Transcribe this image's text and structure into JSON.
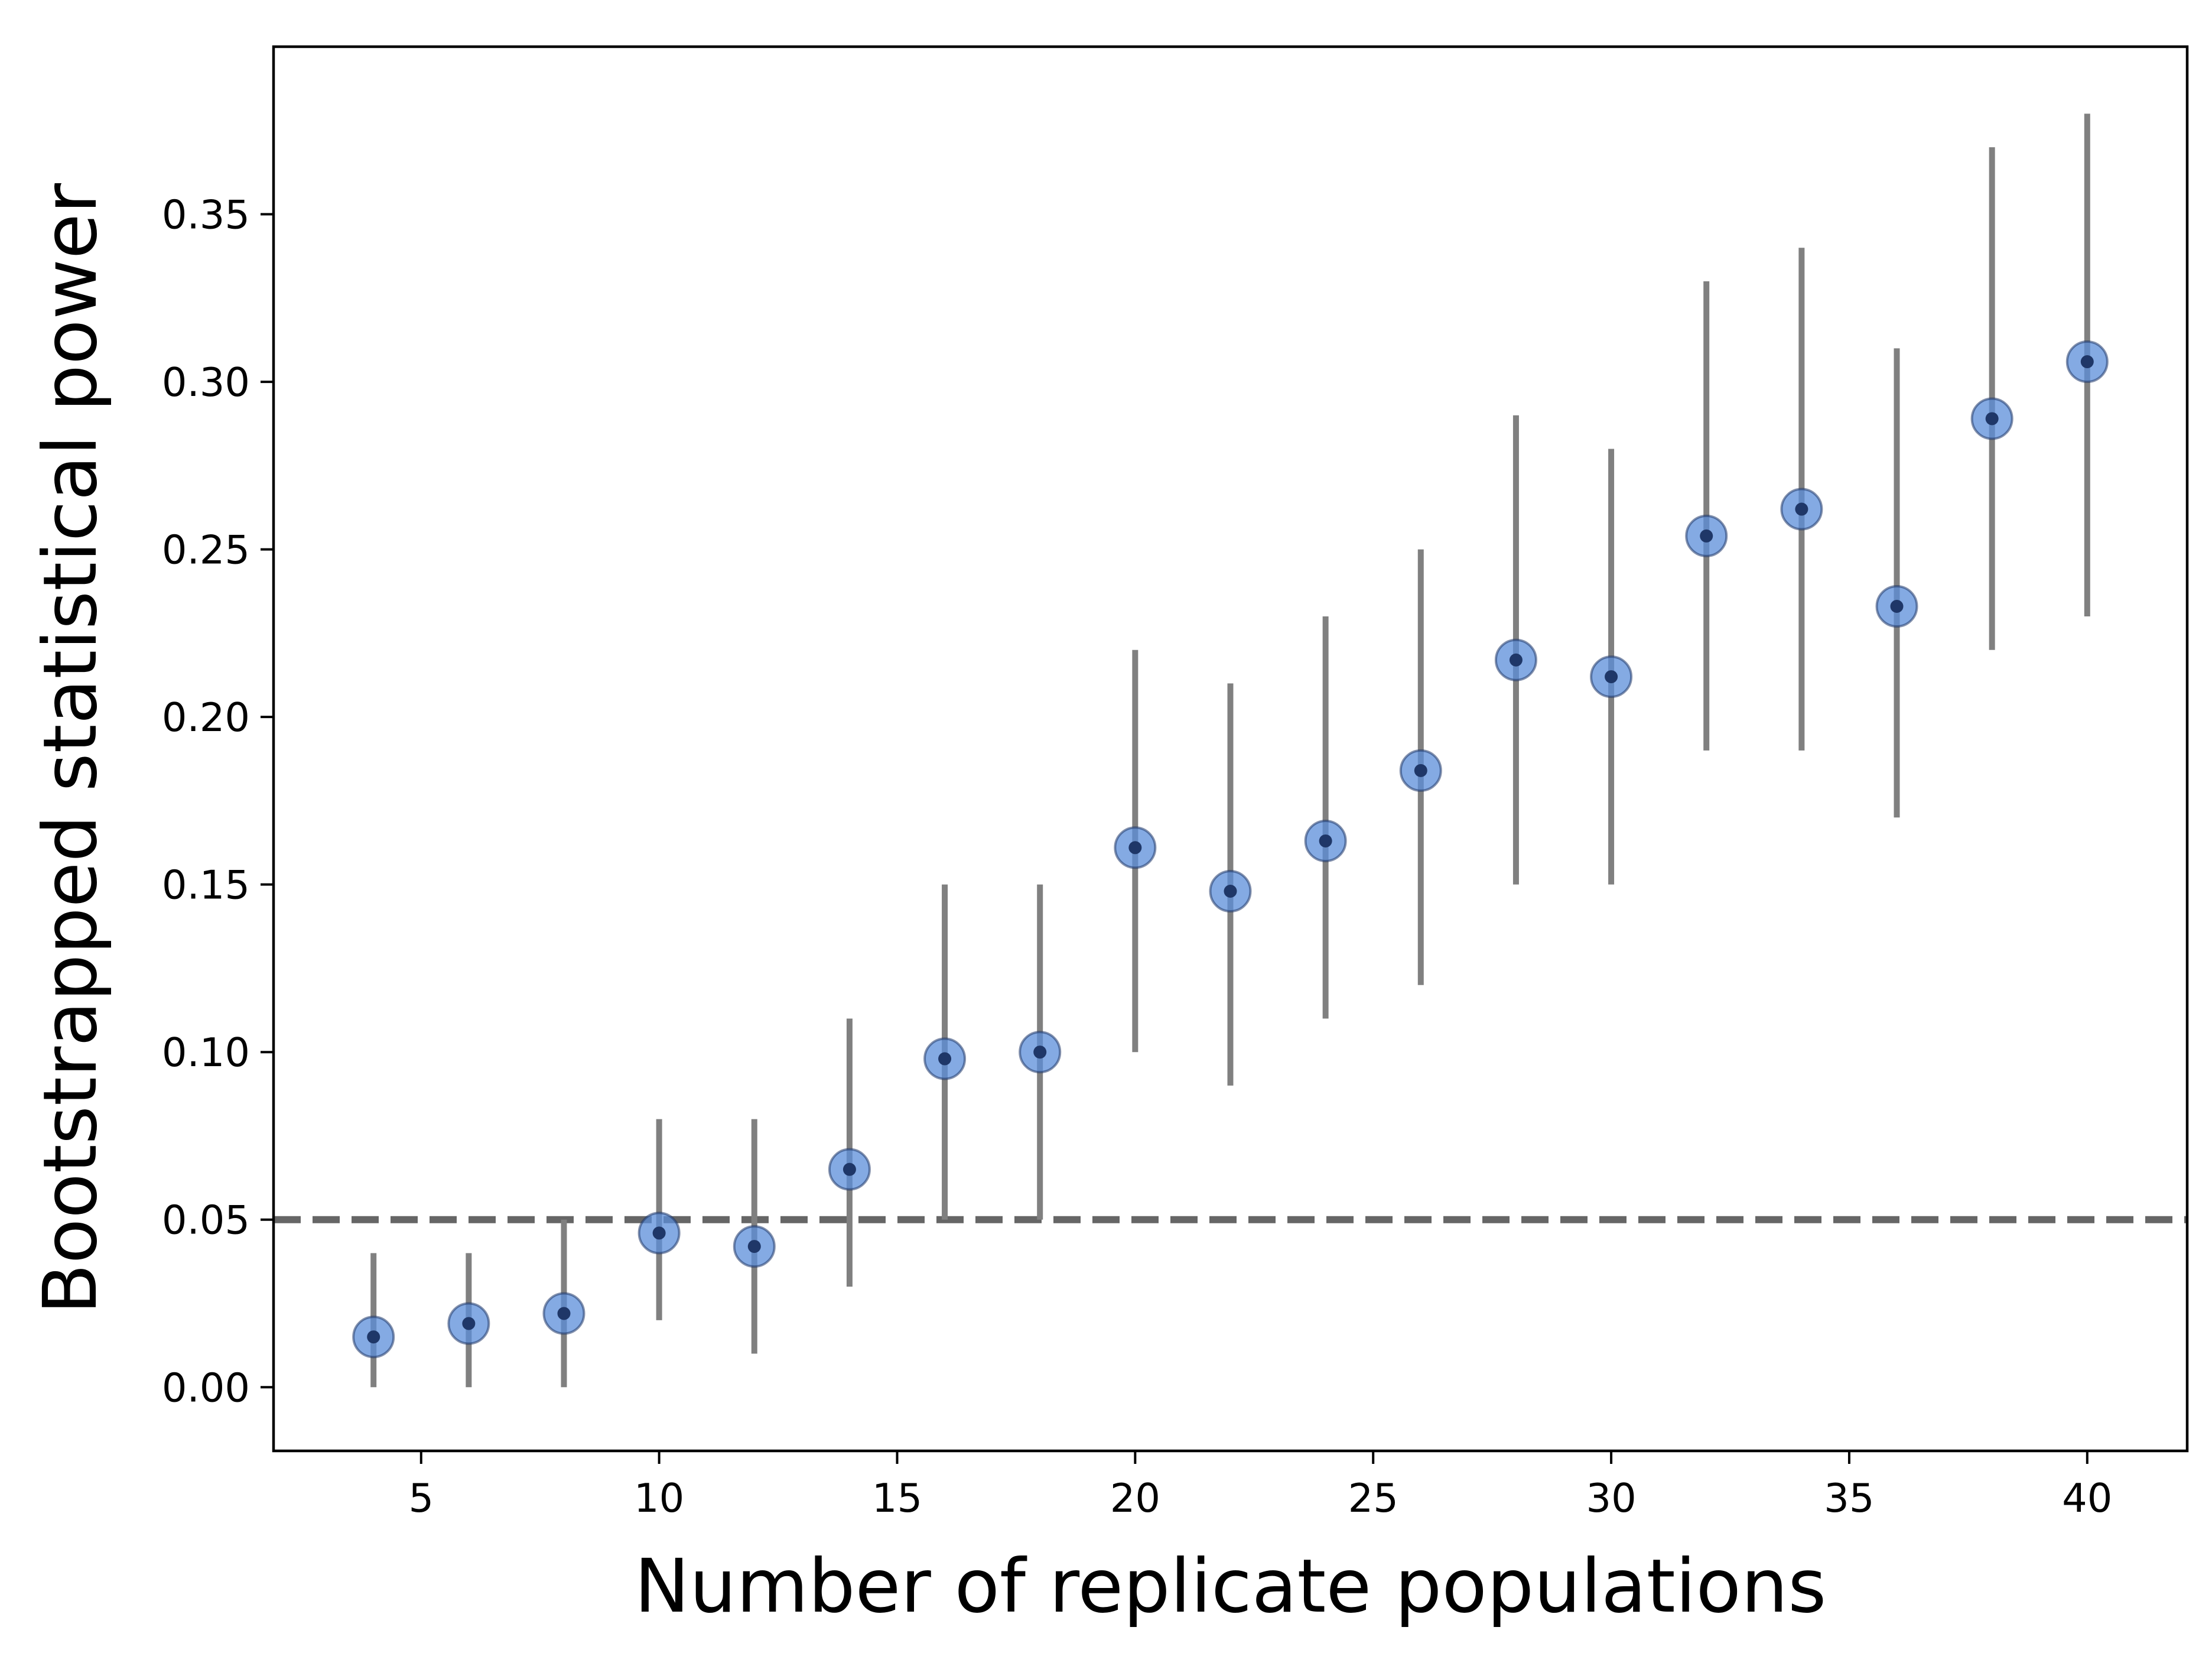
{
  "chart_data": {
    "type": "scatter",
    "xlabel": "Number of replicate populations",
    "ylabel": "Bootstrapped statistical power",
    "xlim": [
      1.9,
      42.1
    ],
    "ylim": [
      -0.019,
      0.4
    ],
    "xticks": [
      5,
      10,
      15,
      20,
      25,
      30,
      35,
      40
    ],
    "yticks": [
      0.0,
      0.05,
      0.1,
      0.15,
      0.2,
      0.25,
      0.3,
      0.35
    ],
    "ytick_labels": [
      "0.00",
      "0.05",
      "0.10",
      "0.15",
      "0.20",
      "0.25",
      "0.30",
      "0.35"
    ],
    "grid": false,
    "reference_line": {
      "y": 0.05,
      "style": "dashed",
      "color": "#666666"
    },
    "series": [
      {
        "marker_color": "#5b8dd9",
        "center_color": "#1f3768",
        "errorbar_color": "#808080",
        "points": [
          {
            "x": 4,
            "y": 0.015,
            "low": 0.0,
            "high": 0.04
          },
          {
            "x": 6,
            "y": 0.019,
            "low": 0.0,
            "high": 0.04
          },
          {
            "x": 8,
            "y": 0.022,
            "low": 0.0,
            "high": 0.05
          },
          {
            "x": 10,
            "y": 0.046,
            "low": 0.02,
            "high": 0.08
          },
          {
            "x": 12,
            "y": 0.042,
            "low": 0.01,
            "high": 0.08
          },
          {
            "x": 14,
            "y": 0.065,
            "low": 0.03,
            "high": 0.11
          },
          {
            "x": 16,
            "y": 0.098,
            "low": 0.05,
            "high": 0.15
          },
          {
            "x": 18,
            "y": 0.1,
            "low": 0.05,
            "high": 0.15
          },
          {
            "x": 20,
            "y": 0.161,
            "low": 0.1,
            "high": 0.22
          },
          {
            "x": 22,
            "y": 0.148,
            "low": 0.09,
            "high": 0.21
          },
          {
            "x": 24,
            "y": 0.163,
            "low": 0.11,
            "high": 0.23
          },
          {
            "x": 26,
            "y": 0.184,
            "low": 0.12,
            "high": 0.25
          },
          {
            "x": 28,
            "y": 0.217,
            "low": 0.15,
            "high": 0.29
          },
          {
            "x": 30,
            "y": 0.212,
            "low": 0.15,
            "high": 0.28
          },
          {
            "x": 32,
            "y": 0.254,
            "low": 0.19,
            "high": 0.33
          },
          {
            "x": 34,
            "y": 0.262,
            "low": 0.19,
            "high": 0.34
          },
          {
            "x": 36,
            "y": 0.233,
            "low": 0.17,
            "high": 0.31
          },
          {
            "x": 38,
            "y": 0.289,
            "low": 0.22,
            "high": 0.37
          },
          {
            "x": 40,
            "y": 0.306,
            "low": 0.23,
            "high": 0.38
          }
        ]
      }
    ]
  }
}
